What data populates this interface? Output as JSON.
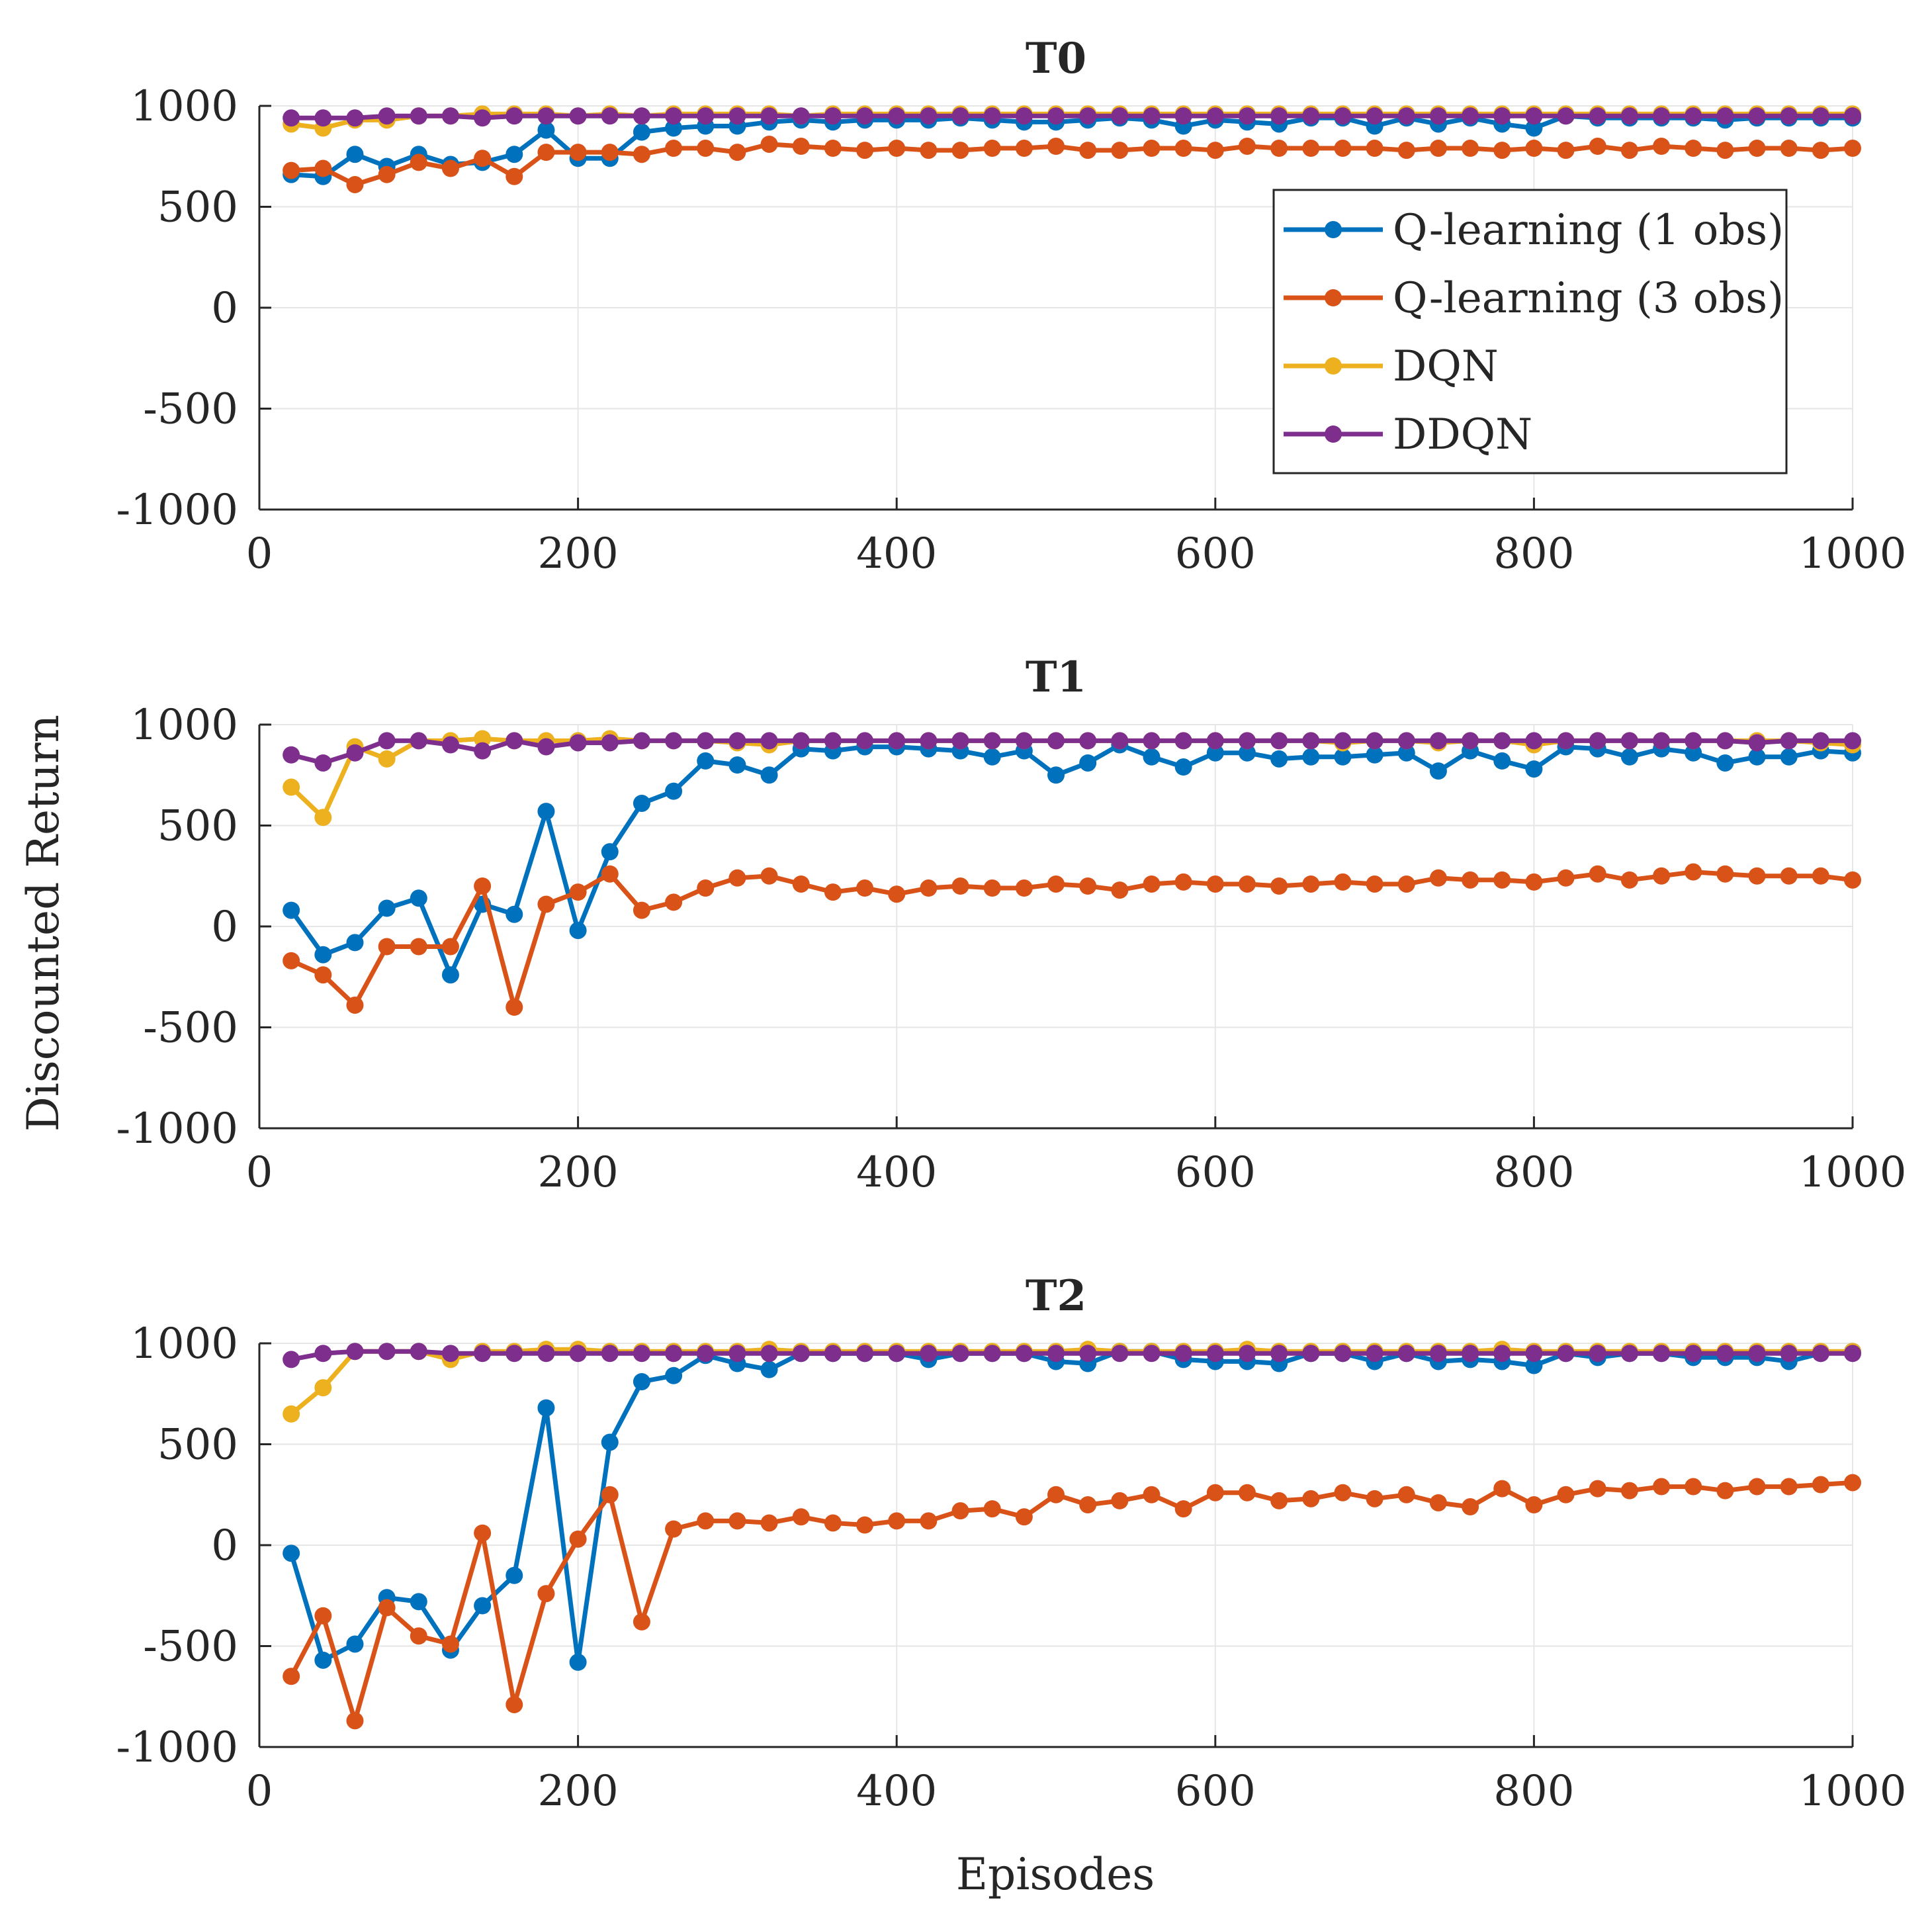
{
  "figure": {
    "ylabel": "Discounted Return",
    "xlabel": "Episodes"
  },
  "legend": {
    "placement": "top-right of first panel",
    "entries": [
      "Q-learning (1 obs)",
      "Q-learning (3 obs)",
      "DQN",
      "DDQN"
    ]
  },
  "colors": {
    "q1": "#0072bd",
    "q3": "#d95319",
    "dqn": "#edb120",
    "ddqn": "#7e2f8e",
    "axis": "#262626",
    "grid": "#e6e6e6"
  },
  "chart_data": [
    {
      "type": "line",
      "title": "T0",
      "xlim": [
        0,
        1000
      ],
      "ylim": [
        -1000,
        1000
      ],
      "xticks": [
        "0",
        "200",
        "400",
        "600",
        "800",
        "1000"
      ],
      "yticks": [
        "1000",
        "500",
        "0",
        "-500",
        "-1000"
      ],
      "grid": true,
      "x": [
        20,
        40,
        60,
        80,
        100,
        120,
        140,
        160,
        180,
        200,
        220,
        240,
        260,
        280,
        300,
        320,
        340,
        360,
        380,
        400,
        420,
        440,
        460,
        480,
        500,
        520,
        540,
        560,
        580,
        600,
        620,
        640,
        660,
        680,
        700,
        720,
        740,
        760,
        780,
        800,
        820,
        840,
        860,
        880,
        900,
        920,
        940,
        960,
        980,
        1000
      ],
      "series": [
        {
          "name": "Q-learning (1 obs)",
          "color_key": "q1",
          "values": [
            660,
            650,
            760,
            700,
            760,
            710,
            720,
            760,
            880,
            740,
            740,
            870,
            890,
            900,
            900,
            920,
            930,
            920,
            930,
            930,
            930,
            940,
            930,
            920,
            920,
            930,
            940,
            930,
            900,
            930,
            920,
            910,
            940,
            940,
            900,
            940,
            910,
            940,
            910,
            890,
            950,
            940,
            940,
            940,
            940,
            930,
            940,
            940,
            940,
            940
          ]
        },
        {
          "name": "Q-learning (3 obs)",
          "color_key": "q3",
          "values": [
            680,
            690,
            610,
            660,
            720,
            690,
            740,
            650,
            770,
            770,
            770,
            760,
            790,
            790,
            770,
            810,
            800,
            790,
            780,
            790,
            780,
            780,
            790,
            790,
            800,
            780,
            780,
            790,
            790,
            780,
            800,
            790,
            790,
            790,
            790,
            780,
            790,
            790,
            780,
            790,
            780,
            800,
            780,
            800,
            790,
            780,
            790,
            790,
            780,
            790
          ]
        },
        {
          "name": "DQN",
          "color_key": "dqn",
          "values": [
            910,
            890,
            930,
            930,
            950,
            950,
            960,
            960,
            960,
            950,
            960,
            950,
            960,
            960,
            960,
            960,
            950,
            960,
            960,
            960,
            960,
            960,
            960,
            960,
            960,
            960,
            960,
            960,
            960,
            960,
            960,
            960,
            960,
            960,
            960,
            960,
            960,
            960,
            960,
            960,
            960,
            960,
            960,
            960,
            960,
            960,
            960,
            960,
            960,
            960
          ]
        },
        {
          "name": "DDQN",
          "color_key": "ddqn",
          "values": [
            940,
            940,
            940,
            950,
            950,
            950,
            940,
            950,
            950,
            950,
            950,
            950,
            950,
            950,
            950,
            950,
            950,
            950,
            950,
            950,
            950,
            950,
            950,
            950,
            950,
            950,
            950,
            950,
            950,
            950,
            950,
            950,
            950,
            950,
            950,
            950,
            950,
            950,
            950,
            950,
            950,
            950,
            950,
            950,
            950,
            950,
            950,
            950,
            950,
            950
          ]
        }
      ]
    },
    {
      "type": "line",
      "title": "T1",
      "xlim": [
        0,
        1000
      ],
      "ylim": [
        -1000,
        1000
      ],
      "xticks": [
        "0",
        "200",
        "400",
        "600",
        "800",
        "1000"
      ],
      "yticks": [
        "1000",
        "500",
        "0",
        "-500",
        "-1000"
      ],
      "grid": true,
      "x": [
        20,
        40,
        60,
        80,
        100,
        120,
        140,
        160,
        180,
        200,
        220,
        240,
        260,
        280,
        300,
        320,
        340,
        360,
        380,
        400,
        420,
        440,
        460,
        480,
        500,
        520,
        540,
        560,
        580,
        600,
        620,
        640,
        660,
        680,
        700,
        720,
        740,
        760,
        780,
        800,
        820,
        840,
        860,
        880,
        900,
        920,
        940,
        960,
        980,
        1000
      ],
      "series": [
        {
          "name": "Q-learning (1 obs)",
          "color_key": "q1",
          "values": [
            80,
            -140,
            -80,
            90,
            140,
            -240,
            110,
            60,
            570,
            -20,
            370,
            610,
            670,
            820,
            800,
            750,
            880,
            870,
            890,
            890,
            880,
            870,
            840,
            870,
            750,
            810,
            900,
            840,
            790,
            860,
            860,
            830,
            840,
            840,
            850,
            860,
            770,
            870,
            820,
            780,
            890,
            880,
            840,
            880,
            860,
            810,
            840,
            840,
            870,
            860
          ]
        },
        {
          "name": "Q-learning (3 obs)",
          "color_key": "q3",
          "values": [
            -170,
            -240,
            -390,
            -100,
            -100,
            -100,
            200,
            -400,
            110,
            170,
            260,
            80,
            120,
            190,
            240,
            250,
            210,
            170,
            190,
            160,
            190,
            200,
            190,
            190,
            210,
            200,
            180,
            210,
            220,
            210,
            210,
            200,
            210,
            220,
            210,
            210,
            240,
            230,
            230,
            220,
            240,
            260,
            230,
            250,
            270,
            260,
            250,
            250,
            250,
            230
          ]
        },
        {
          "name": "DQN",
          "color_key": "dqn",
          "values": [
            690,
            540,
            890,
            830,
            920,
            920,
            930,
            920,
            920,
            920,
            930,
            920,
            920,
            920,
            910,
            900,
            920,
            920,
            920,
            920,
            920,
            920,
            920,
            920,
            920,
            920,
            920,
            920,
            920,
            920,
            920,
            920,
            920,
            910,
            920,
            920,
            910,
            920,
            920,
            900,
            920,
            920,
            920,
            920,
            920,
            920,
            920,
            920,
            910,
            900
          ]
        },
        {
          "name": "DDQN",
          "color_key": "ddqn",
          "values": [
            850,
            810,
            860,
            920,
            920,
            900,
            870,
            920,
            890,
            910,
            910,
            920,
            920,
            920,
            920,
            920,
            920,
            920,
            920,
            920,
            920,
            920,
            920,
            920,
            920,
            920,
            920,
            920,
            920,
            920,
            920,
            920,
            920,
            920,
            920,
            920,
            920,
            920,
            920,
            920,
            920,
            920,
            920,
            920,
            920,
            920,
            910,
            920,
            920,
            920
          ]
        }
      ]
    },
    {
      "type": "line",
      "title": "T2",
      "xlim": [
        0,
        1000
      ],
      "ylim": [
        -1000,
        1000
      ],
      "xticks": [
        "0",
        "200",
        "400",
        "600",
        "800",
        "1000"
      ],
      "yticks": [
        "1000",
        "500",
        "0",
        "-500",
        "-1000"
      ],
      "grid": true,
      "x": [
        20,
        40,
        60,
        80,
        100,
        120,
        140,
        160,
        180,
        200,
        220,
        240,
        260,
        280,
        300,
        320,
        340,
        360,
        380,
        400,
        420,
        440,
        460,
        480,
        500,
        520,
        540,
        560,
        580,
        600,
        620,
        640,
        660,
        680,
        700,
        720,
        740,
        760,
        780,
        800,
        820,
        840,
        860,
        880,
        900,
        920,
        940,
        960,
        980,
        1000
      ],
      "series": [
        {
          "name": "Q-learning (1 obs)",
          "color_key": "q1",
          "values": [
            -40,
            -570,
            -490,
            -260,
            -280,
            -520,
            -300,
            -150,
            680,
            -580,
            510,
            810,
            840,
            940,
            900,
            870,
            950,
            950,
            950,
            950,
            920,
            950,
            950,
            950,
            910,
            900,
            960,
            960,
            920,
            910,
            910,
            900,
            950,
            950,
            910,
            950,
            910,
            920,
            910,
            890,
            950,
            930,
            950,
            950,
            930,
            930,
            930,
            910,
            950,
            960
          ]
        },
        {
          "name": "Q-learning (3 obs)",
          "color_key": "q3",
          "values": [
            -650,
            -350,
            -870,
            -310,
            -450,
            -490,
            60,
            -790,
            -240,
            30,
            250,
            -380,
            80,
            120,
            120,
            110,
            140,
            110,
            100,
            120,
            120,
            170,
            180,
            140,
            250,
            200,
            220,
            250,
            180,
            260,
            260,
            220,
            230,
            260,
            230,
            250,
            210,
            190,
            280,
            200,
            250,
            280,
            270,
            290,
            290,
            270,
            290,
            290,
            300,
            310
          ]
        },
        {
          "name": "DQN",
          "color_key": "dqn",
          "values": [
            650,
            780,
            960,
            960,
            960,
            920,
            960,
            960,
            970,
            970,
            960,
            960,
            960,
            960,
            960,
            970,
            960,
            960,
            960,
            960,
            960,
            960,
            960,
            960,
            960,
            970,
            960,
            960,
            960,
            960,
            970,
            960,
            960,
            960,
            960,
            960,
            960,
            960,
            970,
            960,
            960,
            960,
            960,
            960,
            960,
            960,
            960,
            960,
            960,
            960
          ]
        },
        {
          "name": "DDQN",
          "color_key": "ddqn",
          "values": [
            920,
            950,
            960,
            960,
            960,
            950,
            950,
            950,
            950,
            950,
            950,
            950,
            950,
            950,
            950,
            950,
            950,
            950,
            950,
            950,
            950,
            950,
            950,
            950,
            950,
            950,
            950,
            950,
            950,
            950,
            950,
            950,
            950,
            950,
            950,
            950,
            950,
            950,
            950,
            950,
            950,
            950,
            950,
            950,
            950,
            950,
            950,
            950,
            950,
            950
          ]
        }
      ]
    }
  ]
}
